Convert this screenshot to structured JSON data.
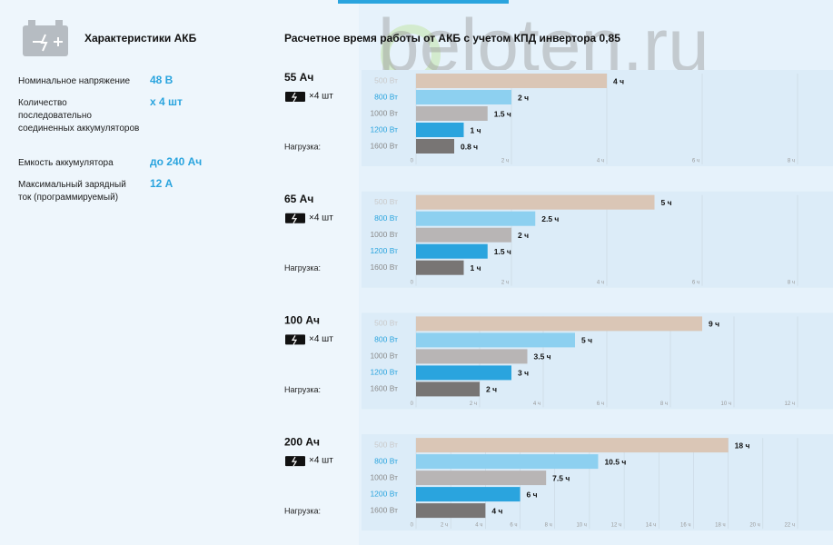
{
  "specs": {
    "title": "Характеристики АКБ",
    "items": [
      {
        "label": "Номинальное напряжение",
        "value": "48 В"
      },
      {
        "label": "Количество последовательно соединенных аккумуляторов",
        "value": "x 4 шт"
      },
      {
        "label": "Емкость аккумулятора",
        "value": "до 240 Ач"
      },
      {
        "label": "Максимальный зарядный ток (программируемый)",
        "value": "12 А"
      }
    ]
  },
  "charts_title": "Расчетное время работы от АКБ с учетом КПД инвертора 0,85",
  "watermark": "beloten.ru",
  "battery_count": "×4 шт",
  "load_label": "Нагрузка:",
  "chart_data": [
    {
      "type": "bar",
      "title": "55 Ач",
      "categories": [
        "500 Вт",
        "800 Вт",
        "1000 Вт",
        "1200 Вт",
        "1600 Вт"
      ],
      "values": [
        4,
        2,
        1.5,
        1,
        0.8
      ],
      "value_labels": [
        "4 ч",
        "2 ч",
        "1.5 ч",
        "1 ч",
        "0.8 ч"
      ],
      "colors": [
        "#dac6b6",
        "#8dd0f0",
        "#b8b5b5",
        "#2aa4de",
        "#787574"
      ],
      "xlim": [
        0,
        8
      ],
      "xticks": [
        0,
        {
          "value": 2,
          "label": "2 ч"
        },
        {
          "value": 4,
          "label": "4 ч"
        },
        {
          "value": 6,
          "label": "6 ч"
        },
        {
          "value": 8,
          "label": "8 ч"
        }
      ],
      "grid": true
    },
    {
      "type": "bar",
      "title": "65 Ач",
      "categories": [
        "500 Вт",
        "800 Вт",
        "1000 Вт",
        "1200 Вт",
        "1600 Вт"
      ],
      "values": [
        5,
        2.5,
        2,
        1.5,
        1
      ],
      "value_labels": [
        "5 ч",
        "2.5 ч",
        "2 ч",
        "1.5 ч",
        "1 ч"
      ],
      "colors": [
        "#dac6b6",
        "#8dd0f0",
        "#b8b5b5",
        "#2aa4de",
        "#787574"
      ],
      "xlim": [
        0,
        8
      ],
      "xticks": [
        0,
        {
          "value": 2,
          "label": "2 ч"
        },
        {
          "value": 4,
          "label": "4 ч"
        },
        {
          "value": 6,
          "label": "6 ч"
        },
        {
          "value": 8,
          "label": "8 ч"
        }
      ],
      "grid": true
    },
    {
      "type": "bar",
      "title": "100 Ач",
      "categories": [
        "500 Вт",
        "800 Вт",
        "1000 Вт",
        "1200 Вт",
        "1600 Вт"
      ],
      "values": [
        9,
        5,
        3.5,
        3,
        2
      ],
      "value_labels": [
        "9 ч",
        "5 ч",
        "3.5 ч",
        "3 ч",
        "2 ч"
      ],
      "colors": [
        "#dac6b6",
        "#8dd0f0",
        "#b8b5b5",
        "#2aa4de",
        "#787574"
      ],
      "xlim": [
        0,
        12
      ],
      "xticks": [
        0,
        {
          "value": 2,
          "label": "2 ч"
        },
        {
          "value": 4,
          "label": "4 ч"
        },
        {
          "value": 6,
          "label": "6 ч"
        },
        {
          "value": 8,
          "label": "8 ч"
        },
        {
          "value": 10,
          "label": "10 ч"
        },
        {
          "value": 12,
          "label": "12 ч"
        }
      ],
      "grid": true
    },
    {
      "type": "bar",
      "title": "200 Ач",
      "categories": [
        "500 Вт",
        "800 Вт",
        "1000 Вт",
        "1200 Вт",
        "1600 Вт"
      ],
      "values": [
        18,
        10.5,
        7.5,
        6,
        4
      ],
      "value_labels": [
        "18 ч",
        "10.5 ч",
        "7.5 ч",
        "6 ч",
        "4 ч"
      ],
      "colors": [
        "#dac6b6",
        "#8dd0f0",
        "#b8b5b5",
        "#2aa4de",
        "#787574"
      ],
      "xlim": [
        0,
        22
      ],
      "xticks": [
        0,
        {
          "value": 2,
          "label": "2 ч"
        },
        {
          "value": 4,
          "label": "4 ч"
        },
        {
          "value": 6,
          "label": "6 ч"
        },
        {
          "value": 8,
          "label": "8 ч"
        },
        {
          "value": 10,
          "label": "10 ч"
        },
        {
          "value": 12,
          "label": "12 ч"
        },
        {
          "value": 14,
          "label": "14 ч"
        },
        {
          "value": 16,
          "label": "16 ч"
        },
        {
          "value": 18,
          "label": "18 ч"
        },
        {
          "value": 20,
          "label": "20 ч"
        },
        {
          "value": 22,
          "label": "22 ч"
        }
      ],
      "grid": true
    }
  ]
}
